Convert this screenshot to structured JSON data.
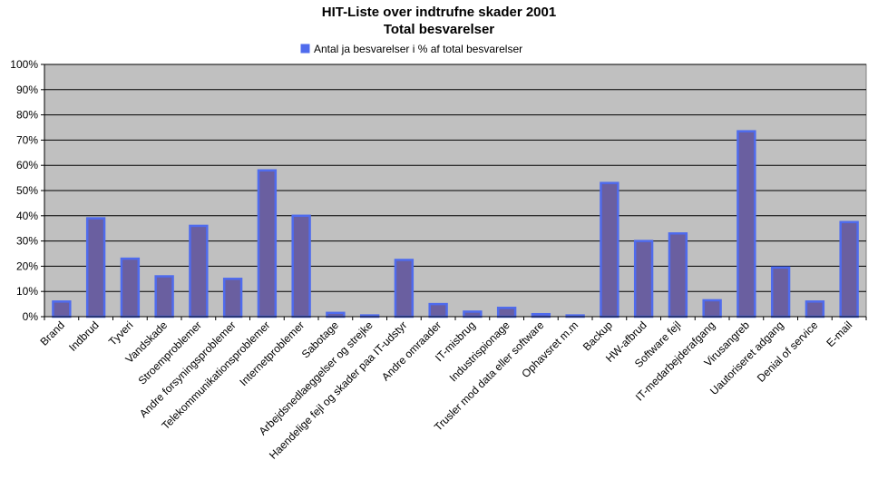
{
  "chart_data": {
    "type": "bar",
    "title": "HIT-Liste over indtrufne skader 2001",
    "subtitle": "Total besvarelser",
    "series": [
      {
        "name": "Antal ja besvarelser  i % af total besvarelser",
        "color": "#4f6bed",
        "fill": "#6a5fa0",
        "values": [
          6,
          39,
          23,
          16,
          36,
          15,
          58,
          40,
          1.5,
          0.5,
          22.5,
          5,
          2,
          3.5,
          1,
          0.5,
          53,
          30,
          33,
          6.5,
          73.5,
          19.5,
          6,
          37.5
        ]
      }
    ],
    "categories": [
      "Brand",
      "Indbrud",
      "Tyveri",
      "Vandskade",
      "Stroemproblemer",
      "Andre forsyningsproblemer",
      "Telekommunikationsproblemer",
      "Internetproblemer",
      "Sabotage",
      "Arbejdsnedlaeggelser og strejke",
      "Haendelige fejl og skader paa IT-udstyr",
      "Andre omraader",
      "IT-misbrug",
      "Industrispionage",
      "Trusler mod data eller software",
      "Ophavsret m.m",
      "Backup",
      "HW-afbrud",
      "Software fejl",
      "IT-medarbejderafgang",
      "Virusangreb",
      "Uautoriseret adgang",
      "Denial of service",
      "E-mail"
    ],
    "y_ticks": [
      "0%",
      "10%",
      "20%",
      "30%",
      "40%",
      "50%",
      "60%",
      "70%",
      "80%",
      "90%",
      "100%"
    ],
    "ylim": [
      0,
      100
    ],
    "grid": true,
    "legend_position": "top-center",
    "plot_background": "#c0c0c0",
    "xlabel": "",
    "ylabel": ""
  }
}
